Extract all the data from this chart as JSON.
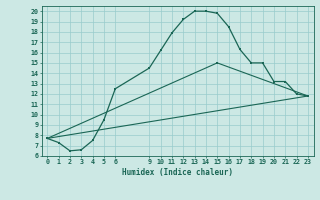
{
  "title": "",
  "xlabel": "Humidex (Indice chaleur)",
  "ylabel": "",
  "bg_color": "#cce8e4",
  "grid_color": "#99cccc",
  "line_color": "#1a6655",
  "xlim": [
    -0.5,
    23.5
  ],
  "ylim": [
    6.0,
    20.5
  ],
  "xticks": [
    0,
    1,
    2,
    3,
    4,
    5,
    6,
    9,
    10,
    11,
    12,
    13,
    14,
    15,
    16,
    17,
    18,
    19,
    20,
    21,
    22,
    23
  ],
  "yticks": [
    6,
    7,
    8,
    9,
    10,
    11,
    12,
    13,
    14,
    15,
    16,
    17,
    18,
    19,
    20
  ],
  "curve1_x": [
    0,
    1,
    2,
    3,
    4,
    5,
    6,
    9,
    10,
    11,
    12,
    13,
    14,
    15,
    16,
    17,
    18,
    19,
    20,
    21,
    22,
    23
  ],
  "curve1_y": [
    7.7,
    7.3,
    6.5,
    6.6,
    7.5,
    9.5,
    12.5,
    14.5,
    16.2,
    17.9,
    19.2,
    20.0,
    20.0,
    19.8,
    18.5,
    16.3,
    15.0,
    15.0,
    13.2,
    13.2,
    12.0,
    11.8
  ],
  "curve2_x": [
    0,
    23
  ],
  "curve2_y": [
    7.7,
    11.8
  ],
  "curve3_x": [
    0,
    15,
    23
  ],
  "curve3_y": [
    7.7,
    15.0,
    11.8
  ],
  "xlabel_fontsize": 5.5,
  "tick_fontsize": 4.8,
  "linewidth1": 0.9,
  "linewidth2": 0.8,
  "markersize": 2.0
}
